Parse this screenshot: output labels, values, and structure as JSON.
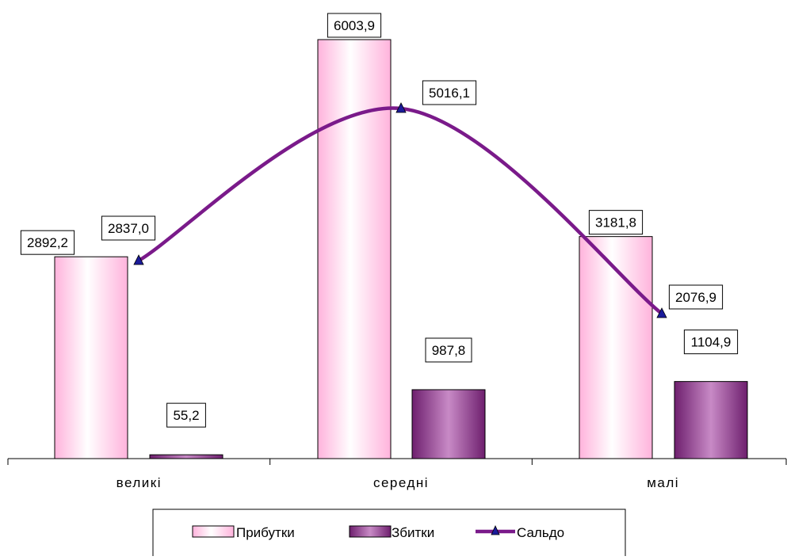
{
  "chart_data": {
    "type": "bar",
    "categories": [
      "великі",
      "середні",
      "малі"
    ],
    "series": [
      {
        "name": "Прибутки",
        "type": "bar",
        "values": [
          2892.2,
          6003.9,
          3181.8
        ],
        "labels": [
          "2892,2",
          "6003,9",
          "3181,8"
        ],
        "color": "#ffc8e6"
      },
      {
        "name": "Збитки",
        "type": "bar",
        "values": [
          55.2,
          987.8,
          1104.9
        ],
        "labels": [
          "55,2",
          "987,8",
          "1104,9"
        ],
        "color": "#9a3f92"
      },
      {
        "name": "Сальдо",
        "type": "line",
        "smooth": true,
        "marker": "triangle",
        "values": [
          2837.0,
          5016.1,
          2076.9
        ],
        "labels": [
          "2837,0",
          "5016,1",
          "2076,9"
        ],
        "color": "#7a1a8a",
        "marker_color": "#1b1b9a"
      }
    ],
    "title": "",
    "xlabel": "",
    "ylabel": "",
    "ylim": [
      0,
      6003.9
    ],
    "grid": false,
    "legend_position": "bottom"
  }
}
